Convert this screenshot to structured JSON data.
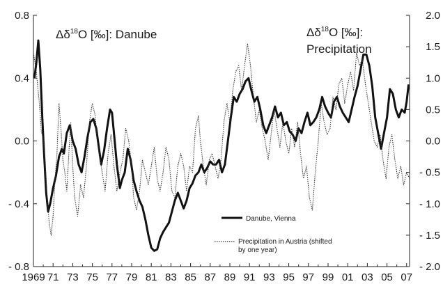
{
  "chart_data": {
    "type": "line",
    "title_left": {
      "prefix": "Δδ",
      "sup": "18",
      "suffix": "O [‰]: Danube"
    },
    "title_right": {
      "prefix": "Δδ",
      "sup": "18",
      "suffix": "O [‰]:",
      "line2": "Precipitation"
    },
    "x_ticks": [
      "1969",
      "71",
      "73",
      "75",
      "77",
      "79",
      "81",
      "83",
      "85",
      "87",
      "89",
      "91",
      "93",
      "95",
      "97",
      "99",
      "01",
      "03",
      "05",
      "07"
    ],
    "x_tick_values": [
      1969,
      1971,
      1973,
      1975,
      1977,
      1979,
      1981,
      1983,
      1985,
      1987,
      1989,
      1991,
      1993,
      1995,
      1997,
      1999,
      2001,
      2003,
      2005,
      2007
    ],
    "xlim": [
      1969,
      2007.3
    ],
    "y_left": {
      "ticks": [
        "0.8",
        "0.4",
        "0.0",
        "- 0.4",
        "- 0.8"
      ],
      "tick_values": [
        0.8,
        0.4,
        0.0,
        -0.4,
        -0.8
      ],
      "lim": [
        -0.8,
        0.8
      ]
    },
    "y_right": {
      "ticks": [
        "2.0",
        "1.5",
        "1.0",
        "0.5",
        "0.0",
        "- 0.5",
        "- 1.0",
        "- 1.5",
        "- 2.0"
      ],
      "tick_values": [
        2.0,
        1.5,
        1.0,
        0.5,
        0.0,
        -0.5,
        -1.0,
        -1.5,
        -2.0
      ],
      "lim": [
        -2.0,
        2.0
      ]
    },
    "series": [
      {
        "name": "Danube, Vienna",
        "axis": "left",
        "style": "solid",
        "points": [
          [
            1969.1,
            0.4
          ],
          [
            1969.3,
            0.5
          ],
          [
            1969.5,
            0.64
          ],
          [
            1969.7,
            0.45
          ],
          [
            1969.9,
            0.15
          ],
          [
            1970.1,
            -0.1
          ],
          [
            1970.3,
            -0.33
          ],
          [
            1970.5,
            -0.45
          ],
          [
            1970.7,
            -0.4
          ],
          [
            1971.0,
            -0.3
          ],
          [
            1971.3,
            -0.22
          ],
          [
            1971.6,
            -0.1
          ],
          [
            1971.9,
            -0.05
          ],
          [
            1972.1,
            -0.08
          ],
          [
            1972.4,
            0.05
          ],
          [
            1972.7,
            0.1
          ],
          [
            1973.0,
            0.0
          ],
          [
            1973.3,
            -0.05
          ],
          [
            1973.6,
            -0.15
          ],
          [
            1973.9,
            -0.2
          ],
          [
            1974.2,
            -0.1
          ],
          [
            1974.5,
            0.02
          ],
          [
            1974.8,
            0.12
          ],
          [
            1975.1,
            0.14
          ],
          [
            1975.4,
            0.08
          ],
          [
            1975.7,
            -0.06
          ],
          [
            1975.9,
            -0.15
          ],
          [
            1976.2,
            -0.06
          ],
          [
            1976.5,
            0.08
          ],
          [
            1976.8,
            0.2
          ],
          [
            1977.0,
            0.18
          ],
          [
            1977.2,
            0.05
          ],
          [
            1977.5,
            -0.15
          ],
          [
            1977.8,
            -0.3
          ],
          [
            1978.0,
            -0.25
          ],
          [
            1978.3,
            -0.2
          ],
          [
            1978.6,
            -0.05
          ],
          [
            1978.9,
            -0.12
          ],
          [
            1979.2,
            -0.25
          ],
          [
            1979.5,
            -0.32
          ],
          [
            1979.8,
            -0.38
          ],
          [
            1980.1,
            -0.42
          ],
          [
            1980.4,
            -0.5
          ],
          [
            1980.7,
            -0.6
          ],
          [
            1981.0,
            -0.68
          ],
          [
            1981.3,
            -0.7
          ],
          [
            1981.6,
            -0.69
          ],
          [
            1981.9,
            -0.62
          ],
          [
            1982.2,
            -0.58
          ],
          [
            1982.5,
            -0.55
          ],
          [
            1982.8,
            -0.52
          ],
          [
            1983.1,
            -0.45
          ],
          [
            1983.4,
            -0.38
          ],
          [
            1983.7,
            -0.33
          ],
          [
            1984.0,
            -0.38
          ],
          [
            1984.3,
            -0.43
          ],
          [
            1984.6,
            -0.38
          ],
          [
            1984.9,
            -0.3
          ],
          [
            1985.2,
            -0.27
          ],
          [
            1985.5,
            -0.22
          ],
          [
            1985.8,
            -0.2
          ],
          [
            1986.1,
            -0.15
          ],
          [
            1986.4,
            -0.2
          ],
          [
            1986.7,
            -0.17
          ],
          [
            1987.0,
            -0.13
          ],
          [
            1987.3,
            -0.15
          ],
          [
            1987.6,
            -0.15
          ],
          [
            1987.9,
            -0.12
          ],
          [
            1988.2,
            -0.2
          ],
          [
            1988.5,
            -0.15
          ],
          [
            1988.8,
            0.0
          ],
          [
            1989.1,
            0.15
          ],
          [
            1989.4,
            0.28
          ],
          [
            1989.7,
            0.25
          ],
          [
            1990.0,
            0.3
          ],
          [
            1990.3,
            0.33
          ],
          [
            1990.6,
            0.38
          ],
          [
            1990.9,
            0.4
          ],
          [
            1991.2,
            0.32
          ],
          [
            1991.5,
            0.25
          ],
          [
            1991.8,
            0.28
          ],
          [
            1992.1,
            0.2
          ],
          [
            1992.4,
            0.1
          ],
          [
            1992.7,
            0.05
          ],
          [
            1993.0,
            0.1
          ],
          [
            1993.3,
            0.15
          ],
          [
            1993.6,
            0.22
          ],
          [
            1993.9,
            0.15
          ],
          [
            1994.2,
            0.18
          ],
          [
            1994.5,
            0.1
          ],
          [
            1994.8,
            0.12
          ],
          [
            1995.1,
            0.06
          ],
          [
            1995.4,
            0.04
          ],
          [
            1995.7,
            0.0
          ],
          [
            1996.0,
            0.08
          ],
          [
            1996.3,
            0.05
          ],
          [
            1996.6,
            0.12
          ],
          [
            1996.9,
            0.18
          ],
          [
            1997.2,
            0.1
          ],
          [
            1997.5,
            0.12
          ],
          [
            1997.8,
            0.15
          ],
          [
            1998.1,
            0.2
          ],
          [
            1998.4,
            0.28
          ],
          [
            1998.7,
            0.22
          ],
          [
            1999.0,
            0.18
          ],
          [
            1999.3,
            0.15
          ],
          [
            1999.6,
            0.25
          ],
          [
            1999.9,
            0.28
          ],
          [
            2000.2,
            0.22
          ],
          [
            2000.5,
            0.18
          ],
          [
            2000.8,
            0.15
          ],
          [
            2001.1,
            0.12
          ],
          [
            2001.4,
            0.2
          ],
          [
            2001.7,
            0.28
          ],
          [
            2002.0,
            0.35
          ],
          [
            2002.3,
            0.45
          ],
          [
            2002.6,
            0.55
          ],
          [
            2002.9,
            0.55
          ],
          [
            2003.2,
            0.48
          ],
          [
            2003.5,
            0.35
          ],
          [
            2003.8,
            0.15
          ],
          [
            2004.1,
            0.05
          ],
          [
            2004.4,
            -0.05
          ],
          [
            2004.7,
            0.05
          ],
          [
            2005.0,
            0.15
          ],
          [
            2005.3,
            0.33
          ],
          [
            2005.6,
            0.3
          ],
          [
            2005.9,
            0.2
          ],
          [
            2006.2,
            0.15
          ],
          [
            2006.5,
            0.2
          ],
          [
            2006.8,
            0.18
          ],
          [
            2007.0,
            0.25
          ],
          [
            2007.2,
            0.36
          ]
        ]
      },
      {
        "name": "Precipitation in Austria (shifted by one year)",
        "legend_lines": [
          "Precipitation in Austria (shifted",
          "by one year)"
        ],
        "axis": "right",
        "style": "dotted",
        "points": [
          [
            1969.0,
            1.4
          ],
          [
            1969.3,
            1.1
          ],
          [
            1969.6,
            0.6
          ],
          [
            1969.8,
            0.15
          ],
          [
            1970.0,
            0.05
          ],
          [
            1970.2,
            -0.4
          ],
          [
            1970.4,
            -0.9
          ],
          [
            1970.6,
            -1.3
          ],
          [
            1970.8,
            -1.5
          ],
          [
            1971.0,
            -1.2
          ],
          [
            1971.2,
            -0.6
          ],
          [
            1971.4,
            -0.2
          ],
          [
            1971.6,
            0.6
          ],
          [
            1971.8,
            0.2
          ],
          [
            1972.0,
            -0.3
          ],
          [
            1972.2,
            -0.5
          ],
          [
            1972.4,
            -0.8
          ],
          [
            1972.6,
            -0.2
          ],
          [
            1972.8,
            0.3
          ],
          [
            1973.0,
            -0.4
          ],
          [
            1973.2,
            -0.9
          ],
          [
            1973.5,
            -1.2
          ],
          [
            1973.8,
            -0.7
          ],
          [
            1974.1,
            -0.9
          ],
          [
            1974.4,
            -0.4
          ],
          [
            1974.7,
            0.3
          ],
          [
            1975.0,
            0.6
          ],
          [
            1975.3,
            0.4
          ],
          [
            1975.5,
            0.0
          ],
          [
            1975.8,
            -0.3
          ],
          [
            1976.0,
            -0.5
          ],
          [
            1976.3,
            -0.8
          ],
          [
            1976.6,
            -0.2
          ],
          [
            1976.9,
            0.1
          ],
          [
            1977.2,
            -0.4
          ],
          [
            1977.5,
            -0.8
          ],
          [
            1977.8,
            -0.5
          ],
          [
            1978.1,
            -0.3
          ],
          [
            1978.4,
            0.2
          ],
          [
            1978.7,
            0.0
          ],
          [
            1979.0,
            -0.4
          ],
          [
            1979.2,
            -0.9
          ],
          [
            1979.5,
            -1.1
          ],
          [
            1979.8,
            -0.8
          ],
          [
            1980.1,
            -0.3
          ],
          [
            1980.4,
            -0.5
          ],
          [
            1980.7,
            -0.7
          ],
          [
            1981.0,
            -0.4
          ],
          [
            1981.3,
            -0.1
          ],
          [
            1981.6,
            -0.6
          ],
          [
            1981.9,
            -0.8
          ],
          [
            1982.2,
            -0.5
          ],
          [
            1982.5,
            -0.1
          ],
          [
            1982.8,
            -0.3
          ],
          [
            1983.1,
            -0.8
          ],
          [
            1983.4,
            -0.9
          ],
          [
            1983.7,
            -0.4
          ],
          [
            1984.0,
            -0.2
          ],
          [
            1984.3,
            -0.4
          ],
          [
            1984.6,
            -0.8
          ],
          [
            1984.9,
            -0.4
          ],
          [
            1985.2,
            -0.5
          ],
          [
            1985.5,
            0.2
          ],
          [
            1985.8,
            0.4
          ],
          [
            1986.0,
            0.0
          ],
          [
            1986.3,
            -0.4
          ],
          [
            1986.6,
            -0.7
          ],
          [
            1986.9,
            -0.3
          ],
          [
            1987.2,
            -0.2
          ],
          [
            1987.5,
            -0.4
          ],
          [
            1987.8,
            -0.6
          ],
          [
            1988.1,
            -0.3
          ],
          [
            1988.4,
            0.3
          ],
          [
            1988.7,
            0.6
          ],
          [
            1989.0,
            0.3
          ],
          [
            1989.3,
            0.8
          ],
          [
            1989.6,
            1.1
          ],
          [
            1989.9,
            1.2
          ],
          [
            1990.2,
            0.8
          ],
          [
            1990.5,
            1.2
          ],
          [
            1990.8,
            1.55
          ],
          [
            1991.1,
            1.2
          ],
          [
            1991.4,
            0.7
          ],
          [
            1991.7,
            0.3
          ],
          [
            1992.0,
            0.5
          ],
          [
            1992.3,
            0.2
          ],
          [
            1992.6,
            0.0
          ],
          [
            1992.9,
            -0.3
          ],
          [
            1993.2,
            0.1
          ],
          [
            1993.5,
            0.5
          ],
          [
            1993.8,
            0.2
          ],
          [
            1994.1,
            -0.1
          ],
          [
            1994.4,
            0.3
          ],
          [
            1994.7,
            0.0
          ],
          [
            1995.0,
            -0.2
          ],
          [
            1995.3,
            0.2
          ],
          [
            1995.6,
            -0.1
          ],
          [
            1995.9,
            0.3
          ],
          [
            1996.2,
            -0.2
          ],
          [
            1996.5,
            -0.6
          ],
          [
            1996.8,
            -0.4
          ],
          [
            1997.1,
            -0.9
          ],
          [
            1997.4,
            -1.1
          ],
          [
            1997.7,
            -0.5
          ],
          [
            1998.0,
            0.0
          ],
          [
            1998.3,
            0.6
          ],
          [
            1998.6,
            0.3
          ],
          [
            1998.9,
            0.1
          ],
          [
            1999.2,
            0.2
          ],
          [
            1999.5,
            0.7
          ],
          [
            1999.8,
            0.5
          ],
          [
            2000.1,
            0.9
          ],
          [
            2000.4,
            1.0
          ],
          [
            2000.7,
            0.6
          ],
          [
            2001.0,
            0.9
          ],
          [
            2001.3,
            1.1
          ],
          [
            2001.6,
            0.8
          ],
          [
            2001.9,
            1.4
          ],
          [
            2002.2,
            1.2
          ],
          [
            2002.5,
            1.3
          ],
          [
            2002.8,
            0.9
          ],
          [
            2003.1,
            0.6
          ],
          [
            2003.4,
            0.3
          ],
          [
            2003.7,
            0.0
          ],
          [
            2004.0,
            -0.1
          ],
          [
            2004.3,
            0.1
          ],
          [
            2004.6,
            -0.3
          ],
          [
            2004.9,
            -0.6
          ],
          [
            2005.2,
            -0.1
          ],
          [
            2005.5,
            0.1
          ],
          [
            2005.8,
            -0.3
          ],
          [
            2006.1,
            -0.6
          ],
          [
            2006.4,
            -0.4
          ],
          [
            2006.7,
            -0.7
          ],
          [
            2007.0,
            -0.5
          ],
          [
            2007.3,
            -0.6
          ]
        ]
      }
    ],
    "legend_position": "bottom-right",
    "grid": false
  }
}
